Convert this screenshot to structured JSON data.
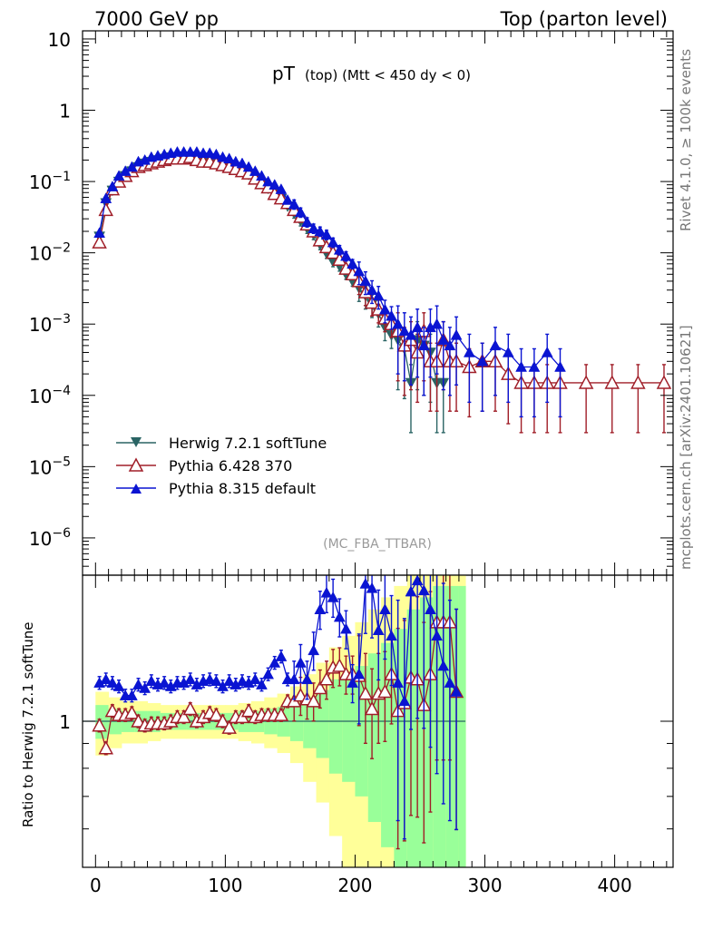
{
  "header": {
    "left": "7000 GeV pp",
    "right": "Top (parton level)"
  },
  "side_labels": {
    "rivet": "Rivet 4.1.0, ≥ 100k events",
    "mcplots": "mcplots.cern.ch [arXiv:2401.10621]"
  },
  "watermark": "(MC_FBA_TTBAR)",
  "chart_data": [
    {
      "type": "line",
      "panel": "main",
      "title_main": "pT",
      "title_sub": "(top)  (Mtt < 450 dy < 0)",
      "yscale": "log",
      "xlim": [
        -10,
        445
      ],
      "ylim": [
        3e-07,
        13
      ],
      "ytick_labels": [
        {
          "value": 1e-06,
          "base": "10",
          "exp": "−6"
        },
        {
          "value": 1e-05,
          "base": "10",
          "exp": "−5"
        },
        {
          "value": 0.0001,
          "base": "10",
          "exp": "−4"
        },
        {
          "value": 0.001,
          "base": "10",
          "exp": "−3"
        },
        {
          "value": 0.01,
          "base": "10",
          "exp": "−2"
        },
        {
          "value": 0.1,
          "base": "10",
          "exp": "−1"
        },
        {
          "value": 1,
          "base": "1",
          "exp": ""
        },
        {
          "value": 10,
          "base": "10",
          "exp": ""
        }
      ],
      "legend": [
        {
          "name": "Herwig 7.2.1 softTune",
          "color": "#2a6464",
          "marker": "triangle-down-filled"
        },
        {
          "name": "Pythia 6.428 370",
          "color": "#a01e28",
          "marker": "triangle-up-open"
        },
        {
          "name": "Pythia 8.315 default",
          "color": "#0a14d2",
          "marker": "triangle-up-filled"
        }
      ],
      "series": [
        {
          "name": "Herwig 7.2.1 softTune",
          "x": [
            3,
            8,
            13,
            18,
            23,
            28,
            33,
            38,
            43,
            48,
            53,
            58,
            63,
            68,
            73,
            78,
            83,
            88,
            93,
            98,
            103,
            108,
            113,
            118,
            123,
            128,
            133,
            138,
            143,
            148,
            153,
            158,
            163,
            168,
            173,
            178,
            183,
            188,
            193,
            198,
            203,
            208,
            213,
            218,
            223,
            228,
            233,
            238,
            243,
            248,
            253,
            258,
            263,
            268
          ],
          "y": [
            0.017,
            0.05,
            0.075,
            0.1,
            0.12,
            0.14,
            0.16,
            0.18,
            0.19,
            0.2,
            0.21,
            0.22,
            0.22,
            0.22,
            0.22,
            0.22,
            0.21,
            0.2,
            0.19,
            0.18,
            0.17,
            0.155,
            0.14,
            0.125,
            0.11,
            0.095,
            0.08,
            0.068,
            0.057,
            0.045,
            0.036,
            0.028,
            0.022,
            0.018,
            0.013,
            0.0098,
            0.0075,
            0.0065,
            0.005,
            0.004,
            0.0032,
            0.0025,
            0.0019,
            0.0014,
            0.0009,
            0.0007,
            0.0006,
            0.00045,
            0.00015,
            0.0006,
            0.0005,
            0.0004,
            0.00015,
            0.00015
          ]
        },
        {
          "name": "Pythia 6.428 370",
          "x": [
            3,
            8,
            13,
            18,
            23,
            28,
            33,
            38,
            43,
            48,
            53,
            58,
            63,
            68,
            73,
            78,
            83,
            88,
            93,
            98,
            103,
            108,
            113,
            118,
            123,
            128,
            133,
            138,
            143,
            148,
            153,
            158,
            163,
            168,
            173,
            178,
            183,
            188,
            193,
            198,
            203,
            208,
            213,
            218,
            223,
            228,
            233,
            238,
            243,
            248,
            253,
            258,
            263,
            268,
            273,
            278,
            288,
            298,
            308,
            318,
            328,
            338,
            348,
            358,
            378,
            398,
            418,
            438
          ],
          "y": [
            0.014,
            0.04,
            0.078,
            0.1,
            0.12,
            0.14,
            0.16,
            0.17,
            0.18,
            0.19,
            0.2,
            0.21,
            0.21,
            0.21,
            0.22,
            0.2,
            0.19,
            0.19,
            0.18,
            0.17,
            0.16,
            0.15,
            0.14,
            0.13,
            0.11,
            0.095,
            0.083,
            0.067,
            0.058,
            0.05,
            0.04,
            0.032,
            0.025,
            0.02,
            0.015,
            0.012,
            0.01,
            0.008,
            0.006,
            0.005,
            0.004,
            0.0028,
            0.002,
            0.0016,
            0.0012,
            0.001,
            0.0008,
            0.0005,
            0.0006,
            0.0004,
            0.0008,
            0.0003,
            0.0003,
            0.0006,
            0.0003,
            0.0003,
            0.00025,
            0.0003,
            0.0003,
            0.0002,
            0.00015,
            0.00015,
            0.00015,
            0.00015,
            0.00015,
            0.00015,
            0.00015,
            0.00015
          ]
        },
        {
          "name": "Pythia 8.315 default",
          "x": [
            3,
            8,
            13,
            18,
            23,
            28,
            33,
            38,
            43,
            48,
            53,
            58,
            63,
            68,
            73,
            78,
            83,
            88,
            93,
            98,
            103,
            108,
            113,
            118,
            123,
            128,
            133,
            138,
            143,
            148,
            153,
            158,
            163,
            168,
            173,
            178,
            183,
            188,
            193,
            198,
            203,
            208,
            213,
            218,
            223,
            228,
            233,
            238,
            243,
            248,
            253,
            258,
            263,
            268,
            273,
            278,
            288,
            298,
            308,
            318,
            328,
            338,
            348,
            358
          ],
          "y": [
            0.019,
            0.058,
            0.085,
            0.12,
            0.14,
            0.16,
            0.19,
            0.2,
            0.22,
            0.23,
            0.24,
            0.25,
            0.26,
            0.26,
            0.26,
            0.26,
            0.25,
            0.25,
            0.24,
            0.22,
            0.21,
            0.19,
            0.18,
            0.16,
            0.14,
            0.12,
            0.1,
            0.09,
            0.078,
            0.055,
            0.048,
            0.037,
            0.027,
            0.022,
            0.02,
            0.018,
            0.014,
            0.011,
            0.009,
            0.007,
            0.0055,
            0.004,
            0.003,
            0.0025,
            0.0016,
            0.0013,
            0.001,
            0.0008,
            0.0007,
            0.0009,
            0.0005,
            0.0009,
            0.001,
            0.0006,
            0.0005,
            0.0007,
            0.0004,
            0.0003,
            0.0005,
            0.0004,
            0.00025,
            0.00025,
            0.0004,
            0.00025
          ]
        }
      ]
    },
    {
      "type": "line",
      "panel": "ratio",
      "ylabel": "Ratio to Herwig 7.2.1 softTune",
      "yscale": "log",
      "xlim": [
        -10,
        445
      ],
      "ylim": [
        0.5,
        2.0
      ],
      "ytick_labels": [
        {
          "value": 1,
          "label": "1"
        }
      ],
      "xticks": [
        0,
        100,
        200,
        300,
        400
      ],
      "xtick_labels": [
        "0",
        "100",
        "200",
        "300",
        "400"
      ],
      "band_x": [
        0,
        10,
        20,
        30,
        40,
        50,
        60,
        70,
        80,
        90,
        100,
        110,
        120,
        130,
        140,
        150,
        160,
        170,
        180,
        190,
        200,
        210,
        220,
        230,
        240,
        250,
        260,
        270,
        280,
        285
      ],
      "band_green": [
        0.08,
        0.06,
        0.05,
        0.05,
        0.05,
        0.04,
        0.04,
        0.04,
        0.04,
        0.04,
        0.04,
        0.05,
        0.05,
        0.06,
        0.07,
        0.09,
        0.12,
        0.16,
        0.22,
        0.25,
        0.3,
        0.38,
        0.45,
        0.55,
        0.7,
        0.8,
        0.9,
        0.9,
        0.9,
        0.9
      ],
      "band_yellow": [
        0.15,
        0.12,
        0.1,
        0.1,
        0.09,
        0.08,
        0.08,
        0.08,
        0.08,
        0.08,
        0.08,
        0.09,
        0.1,
        0.12,
        0.14,
        0.18,
        0.25,
        0.32,
        0.42,
        0.5,
        0.6,
        0.7,
        0.8,
        0.9,
        1.0,
        1.0,
        1.0,
        1.0,
        1.0,
        1.0
      ],
      "series": [
        {
          "name": "Pythia 6.428 370",
          "x": [
            3,
            8,
            13,
            18,
            23,
            28,
            33,
            38,
            43,
            48,
            53,
            58,
            63,
            68,
            73,
            78,
            83,
            88,
            93,
            98,
            103,
            108,
            113,
            118,
            123,
            128,
            133,
            138,
            143,
            148,
            153,
            158,
            163,
            168,
            173,
            178,
            183,
            188,
            193,
            198,
            203,
            208,
            213,
            218,
            223,
            228,
            233,
            238,
            243,
            248,
            253,
            258,
            263,
            268,
            273,
            278
          ],
          "y": [
            0.98,
            0.88,
            1.05,
            1.03,
            1.03,
            1.04,
            1.0,
            0.98,
            0.99,
            0.99,
            0.99,
            1.0,
            1.02,
            1.02,
            1.06,
            1.0,
            1.02,
            1.04,
            1.03,
            1.0,
            0.97,
            1.02,
            1.02,
            1.05,
            1.02,
            1.03,
            1.03,
            1.03,
            1.03,
            1.1,
            1.1,
            1.13,
            1.11,
            1.1,
            1.17,
            1.22,
            1.29,
            1.3,
            1.25,
            1.25,
            1.24,
            1.14,
            1.06,
            1.14,
            1.15,
            1.25,
            1.05,
            1.09,
            1.23,
            1.22,
            1.08,
            1.25,
            1.6,
            1.6,
            1.6,
            1.15
          ]
        },
        {
          "name": "Pythia 8.315 default",
          "x": [
            3,
            8,
            13,
            18,
            23,
            28,
            33,
            38,
            43,
            48,
            53,
            58,
            63,
            68,
            73,
            78,
            83,
            88,
            93,
            98,
            103,
            108,
            113,
            118,
            123,
            128,
            133,
            138,
            143,
            148,
            153,
            158,
            163,
            168,
            173,
            178,
            183,
            188,
            193,
            198,
            203,
            208,
            213,
            218,
            223,
            228,
            233,
            238,
            243,
            248,
            253,
            258,
            263,
            268,
            273,
            278
          ],
          "y": [
            1.2,
            1.22,
            1.2,
            1.18,
            1.13,
            1.13,
            1.19,
            1.17,
            1.21,
            1.19,
            1.2,
            1.18,
            1.2,
            1.2,
            1.22,
            1.19,
            1.21,
            1.22,
            1.21,
            1.18,
            1.21,
            1.19,
            1.21,
            1.2,
            1.22,
            1.19,
            1.25,
            1.32,
            1.36,
            1.22,
            1.22,
            1.32,
            1.22,
            1.4,
            1.7,
            1.84,
            1.8,
            1.64,
            1.55,
            1.2,
            1.25,
            1.92,
            1.88,
            1.54,
            1.7,
            1.5,
            1.2,
            1.1,
            1.85,
            1.95,
            1.86,
            1.7,
            1.5,
            1.3,
            1.2,
            1.15
          ]
        }
      ]
    }
  ]
}
